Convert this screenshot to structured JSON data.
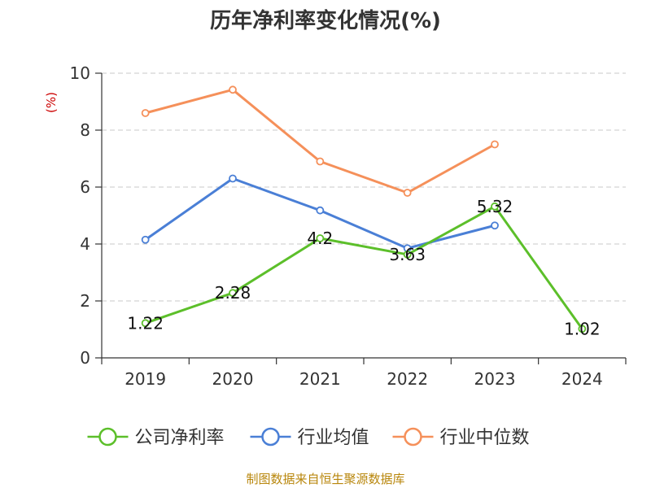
{
  "chart_data": {
    "type": "line",
    "title": "历年净利率变化情况(%)",
    "ylabel": "(%)",
    "xlabel": "",
    "categories": [
      "2019",
      "2020",
      "2021",
      "2022",
      "2023",
      "2024"
    ],
    "ylim": [
      0,
      10
    ],
    "yticks": [
      0,
      2,
      4,
      6,
      8,
      10
    ],
    "grid": true,
    "legend_position": "bottom",
    "series": [
      {
        "name": "公司净利率",
        "color": "#5cbf2a",
        "values": [
          1.22,
          2.28,
          4.2,
          3.63,
          5.32,
          1.02
        ],
        "data_labels": [
          "1.22",
          "2.28",
          "4.2",
          "3.63",
          "5.32",
          "1.02"
        ]
      },
      {
        "name": "行业均值",
        "color": "#4a7fd6",
        "values": [
          4.15,
          6.3,
          5.18,
          3.85,
          4.65,
          null
        ]
      },
      {
        "name": "行业中位数",
        "color": "#f5905a",
        "values": [
          8.6,
          9.42,
          6.9,
          5.8,
          7.5,
          null
        ]
      }
    ]
  },
  "source": "制图数据来自恒生聚源数据库"
}
